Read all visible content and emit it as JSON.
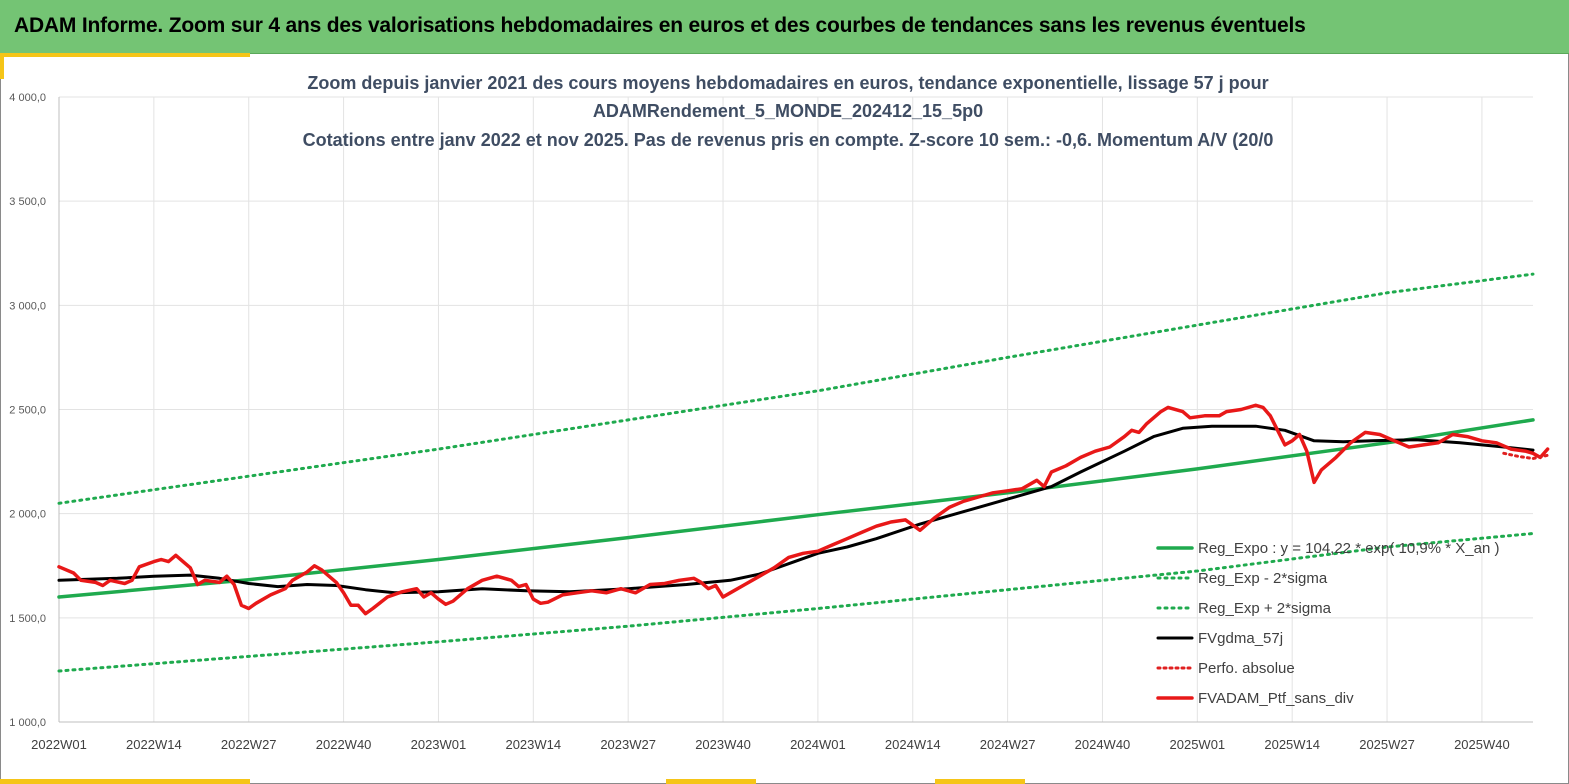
{
  "header": {
    "title": "ADAM Informe. Zoom sur 4 ans des valorisations hebdomadaires en euros et des courbes de tendances sans les revenus éventuels"
  },
  "colors": {
    "header_bg": "#74c474",
    "accent": "#f5c518",
    "trend": "#1faa4e",
    "trend_dotted": "#1faa4e",
    "moving_avg": "#000000",
    "perf": "#e02020",
    "portfolio": "#e81818"
  },
  "chart_data": {
    "type": "line",
    "title_lines": [
      "Zoom depuis janvier 2021 des cours moyens hebdomadaires  en euros, tendance exponentielle, lissage 57 j pour",
      "ADAMRendement_5_MONDE_202412_15_5p0",
      "Cotations  entre janv 2022 et nov 2025. Pas de revenus pris en compte. Z-score 10 sem.: -0,6. Momentum A/V (20/0"
    ],
    "ylim": [
      1000,
      4000
    ],
    "y_ticks": [
      1000,
      1500,
      2000,
      2500,
      3000,
      3500,
      4000
    ],
    "y_tick_labels": [
      "1 000,0",
      "1 500,0",
      "2 000,0",
      "2 500,0",
      "3 000,0",
      "3 500,0",
      "4 000,0"
    ],
    "x_range": [
      0,
      202
    ],
    "x_ticks": [
      0,
      13,
      26,
      39,
      52,
      65,
      78,
      91,
      104,
      117,
      130,
      143,
      156,
      169,
      182,
      195
    ],
    "x_tick_labels": [
      "2022W01",
      "2022W14",
      "2022W27",
      "2022W40",
      "2023W01",
      "2023W14",
      "2023W27",
      "2023W40",
      "2024W01",
      "2024W14",
      "2024W27",
      "2024W40",
      "2025W01",
      "2025W14",
      "2025W27",
      "2025W40"
    ],
    "grid": true,
    "legend_position": "bottom-right",
    "legend": [
      {
        "key": "reg_expo",
        "label": "Reg_Expo : y = 104,22 * exp( 10,9% *  X_an )"
      },
      {
        "key": "reg_minus",
        "label": "Reg_Exp - 2*sigma"
      },
      {
        "key": "reg_plus",
        "label": "Reg_Exp + 2*sigma"
      },
      {
        "key": "fvgdma",
        "label": "FVgdma_57j"
      },
      {
        "key": "perfo",
        "label": "Perfo. absolue"
      },
      {
        "key": "ptf",
        "label": "FVADAM_Ptf_sans_div"
      }
    ],
    "series": [
      {
        "key": "reg_expo",
        "name": "Reg_Expo",
        "style": "solid",
        "points": [
          [
            0,
            1600
          ],
          [
            26,
            1683
          ],
          [
            52,
            1780
          ],
          [
            78,
            1885
          ],
          [
            104,
            1995
          ],
          [
            130,
            2100
          ],
          [
            156,
            2215
          ],
          [
            182,
            2340
          ],
          [
            202,
            2450
          ]
        ]
      },
      {
        "key": "reg_plus",
        "name": "Reg_Exp + 2*sigma",
        "style": "dotted",
        "points": [
          [
            0,
            2050
          ],
          [
            26,
            2180
          ],
          [
            52,
            2310
          ],
          [
            78,
            2450
          ],
          [
            104,
            2590
          ],
          [
            130,
            2750
          ],
          [
            156,
            2905
          ],
          [
            182,
            3060
          ],
          [
            202,
            3150
          ]
        ]
      },
      {
        "key": "reg_minus",
        "name": "Reg_Exp - 2*sigma",
        "style": "dotted",
        "points": [
          [
            0,
            1245
          ],
          [
            26,
            1315
          ],
          [
            52,
            1385
          ],
          [
            78,
            1460
          ],
          [
            104,
            1545
          ],
          [
            130,
            1635
          ],
          [
            156,
            1725
          ],
          [
            182,
            1840
          ],
          [
            202,
            1905
          ]
        ]
      },
      {
        "key": "fvgdma",
        "name": "FVgdma_57j",
        "style": "solid",
        "points": [
          [
            0,
            1680
          ],
          [
            8,
            1690
          ],
          [
            13,
            1700
          ],
          [
            18,
            1705
          ],
          [
            22,
            1690
          ],
          [
            26,
            1665
          ],
          [
            30,
            1650
          ],
          [
            34,
            1660
          ],
          [
            38,
            1655
          ],
          [
            42,
            1635
          ],
          [
            46,
            1620
          ],
          [
            52,
            1625
          ],
          [
            58,
            1640
          ],
          [
            64,
            1630
          ],
          [
            70,
            1625
          ],
          [
            78,
            1640
          ],
          [
            86,
            1660
          ],
          [
            92,
            1680
          ],
          [
            96,
            1710
          ],
          [
            100,
            1760
          ],
          [
            104,
            1810
          ],
          [
            108,
            1840
          ],
          [
            112,
            1880
          ],
          [
            118,
            1950
          ],
          [
            124,
            2010
          ],
          [
            130,
            2070
          ],
          [
            136,
            2130
          ],
          [
            140,
            2200
          ],
          [
            146,
            2300
          ],
          [
            150,
            2370
          ],
          [
            154,
            2410
          ],
          [
            158,
            2420
          ],
          [
            164,
            2420
          ],
          [
            168,
            2400
          ],
          [
            172,
            2350
          ],
          [
            176,
            2345
          ],
          [
            180,
            2350
          ],
          [
            186,
            2355
          ],
          [
            192,
            2340
          ],
          [
            198,
            2320
          ],
          [
            202,
            2305
          ]
        ]
      },
      {
        "key": "ptf",
        "name": "FVADAM_Ptf_sans_div",
        "style": "solid",
        "points": [
          [
            0,
            1745
          ],
          [
            2,
            1715
          ],
          [
            3,
            1680
          ],
          [
            5,
            1670
          ],
          [
            6,
            1655
          ],
          [
            7,
            1680
          ],
          [
            9,
            1665
          ],
          [
            10,
            1680
          ],
          [
            11,
            1745
          ],
          [
            13,
            1770
          ],
          [
            14,
            1780
          ],
          [
            15,
            1770
          ],
          [
            16,
            1800
          ],
          [
            17,
            1770
          ],
          [
            18,
            1740
          ],
          [
            19,
            1660
          ],
          [
            20,
            1680
          ],
          [
            22,
            1670
          ],
          [
            23,
            1700
          ],
          [
            24,
            1660
          ],
          [
            25,
            1560
          ],
          [
            26,
            1545
          ],
          [
            27,
            1570
          ],
          [
            29,
            1610
          ],
          [
            31,
            1640
          ],
          [
            32,
            1680
          ],
          [
            34,
            1720
          ],
          [
            35,
            1750
          ],
          [
            36,
            1730
          ],
          [
            37,
            1700
          ],
          [
            38,
            1670
          ],
          [
            39,
            1620
          ],
          [
            40,
            1560
          ],
          [
            41,
            1560
          ],
          [
            42,
            1520
          ],
          [
            43,
            1545
          ],
          [
            45,
            1600
          ],
          [
            47,
            1625
          ],
          [
            49,
            1640
          ],
          [
            50,
            1600
          ],
          [
            51,
            1620
          ],
          [
            52,
            1590
          ],
          [
            53,
            1565
          ],
          [
            54,
            1580
          ],
          [
            56,
            1640
          ],
          [
            58,
            1680
          ],
          [
            60,
            1700
          ],
          [
            62,
            1680
          ],
          [
            63,
            1650
          ],
          [
            64,
            1660
          ],
          [
            65,
            1590
          ],
          [
            66,
            1570
          ],
          [
            67,
            1575
          ],
          [
            69,
            1610
          ],
          [
            71,
            1620
          ],
          [
            73,
            1630
          ],
          [
            75,
            1620
          ],
          [
            77,
            1640
          ],
          [
            79,
            1620
          ],
          [
            81,
            1660
          ],
          [
            83,
            1665
          ],
          [
            85,
            1680
          ],
          [
            87,
            1690
          ],
          [
            88,
            1670
          ],
          [
            89,
            1640
          ],
          [
            90,
            1655
          ],
          [
            91,
            1600
          ],
          [
            92,
            1620
          ],
          [
            94,
            1660
          ],
          [
            96,
            1700
          ],
          [
            98,
            1740
          ],
          [
            100,
            1790
          ],
          [
            102,
            1810
          ],
          [
            104,
            1820
          ],
          [
            106,
            1850
          ],
          [
            108,
            1880
          ],
          [
            110,
            1910
          ],
          [
            112,
            1940
          ],
          [
            114,
            1960
          ],
          [
            116,
            1970
          ],
          [
            118,
            1920
          ],
          [
            120,
            1980
          ],
          [
            122,
            2030
          ],
          [
            124,
            2060
          ],
          [
            126,
            2080
          ],
          [
            128,
            2100
          ],
          [
            130,
            2110
          ],
          [
            132,
            2120
          ],
          [
            134,
            2160
          ],
          [
            135,
            2130
          ],
          [
            136,
            2200
          ],
          [
            138,
            2230
          ],
          [
            140,
            2270
          ],
          [
            142,
            2300
          ],
          [
            144,
            2320
          ],
          [
            146,
            2370
          ],
          [
            147,
            2400
          ],
          [
            148,
            2390
          ],
          [
            149,
            2430
          ],
          [
            151,
            2490
          ],
          [
            152,
            2510
          ],
          [
            154,
            2490
          ],
          [
            155,
            2460
          ],
          [
            157,
            2470
          ],
          [
            159,
            2470
          ],
          [
            160,
            2490
          ],
          [
            162,
            2500
          ],
          [
            164,
            2520
          ],
          [
            165,
            2510
          ],
          [
            166,
            2470
          ],
          [
            167,
            2400
          ],
          [
            168,
            2330
          ],
          [
            169,
            2350
          ],
          [
            170,
            2380
          ],
          [
            171,
            2300
          ],
          [
            172,
            2150
          ],
          [
            173,
            2210
          ],
          [
            175,
            2270
          ],
          [
            177,
            2340
          ],
          [
            179,
            2390
          ],
          [
            181,
            2380
          ],
          [
            183,
            2350
          ],
          [
            185,
            2320
          ],
          [
            187,
            2330
          ],
          [
            189,
            2340
          ],
          [
            191,
            2380
          ],
          [
            193,
            2370
          ],
          [
            195,
            2350
          ],
          [
            197,
            2340
          ],
          [
            199,
            2310
          ],
          [
            201,
            2300
          ],
          [
            202,
            2290
          ],
          [
            203,
            2270
          ],
          [
            204,
            2310
          ]
        ]
      },
      {
        "key": "perfo",
        "name": "Perfo. absolue",
        "style": "dotted",
        "points": [
          [
            198,
            2290
          ],
          [
            200,
            2275
          ],
          [
            202,
            2265
          ],
          [
            204,
            2280
          ]
        ]
      }
    ]
  }
}
